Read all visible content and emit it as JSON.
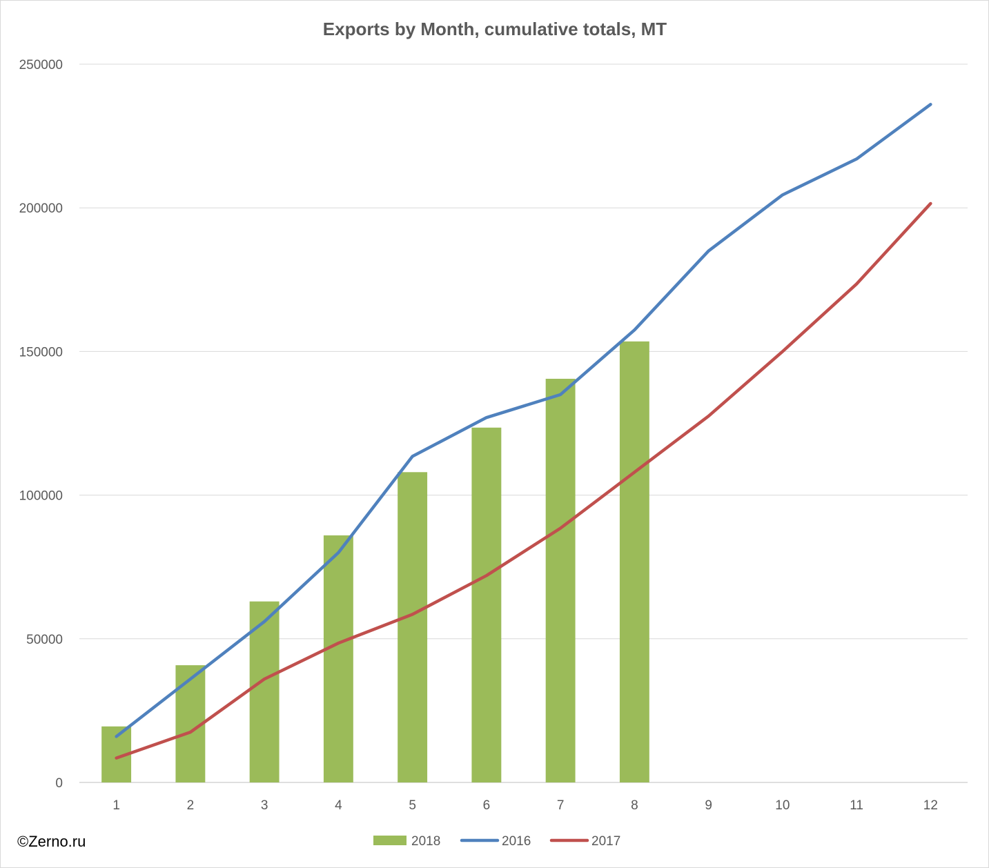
{
  "credit": "©Zerno.ru",
  "chart_data": {
    "type": "bar",
    "title": "Exports by Month, cumulative totals, MT",
    "xlabel": "",
    "ylabel": "",
    "categories": [
      "1",
      "2",
      "3",
      "4",
      "5",
      "6",
      "7",
      "8",
      "9",
      "10",
      "11",
      "12"
    ],
    "ylim": [
      0,
      250000
    ],
    "yticks": [
      "0",
      "50000",
      "100000",
      "150000",
      "200000",
      "250000"
    ],
    "grid": true,
    "legend_position": "bottom",
    "series": [
      {
        "name": "2018",
        "type": "bar",
        "color": "#9bbb59",
        "values": [
          19500,
          40800,
          63000,
          86000,
          108000,
          123500,
          140500,
          153500,
          null,
          null,
          null,
          null
        ]
      },
      {
        "name": "2016",
        "type": "line",
        "color": "#4f81bd",
        "values": [
          16000,
          36000,
          56000,
          80000,
          113500,
          127000,
          135000,
          157500,
          185000,
          204500,
          217000,
          236000
        ]
      },
      {
        "name": "2017",
        "type": "line",
        "color": "#c0504d",
        "values": [
          8500,
          17500,
          36000,
          48500,
          58500,
          72000,
          88500,
          108000,
          127500,
          150000,
          173500,
          201500
        ]
      }
    ]
  }
}
